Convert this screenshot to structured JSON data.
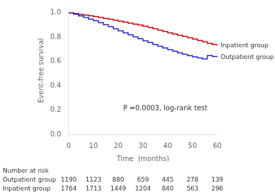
{
  "chart_data": {
    "type": "step",
    "xlabel": "Time  (months)",
    "ylabel": "Event-free survival",
    "xlim": [
      0,
      60
    ],
    "ylim": [
      0,
      1.05
    ],
    "xticks": [
      0,
      10,
      20,
      30,
      40,
      50,
      60
    ],
    "yticks": [
      {
        "value": 0,
        "label": "0.0"
      },
      0.2,
      0.4,
      0.6,
      0.8,
      {
        "value": 1.0,
        "label": "1.0"
      }
    ],
    "grid": false,
    "annotations": [
      {
        "text": "P =0.0003, log-rank test",
        "x": 22,
        "y": 0.21
      }
    ],
    "at_risk_title": "Number at risk",
    "at_risk_x": [
      0,
      10,
      20,
      30,
      40,
      50,
      60
    ],
    "series": [
      {
        "name": "Outpatient group",
        "color": "#2222cc",
        "x": [
          0,
          2,
          4,
          6,
          8,
          10,
          12,
          14,
          16,
          18,
          20,
          22,
          24,
          26,
          28,
          30,
          32,
          34,
          36,
          38,
          40,
          42,
          44,
          46,
          48,
          50,
          52,
          54,
          56,
          58,
          60
        ],
        "values": [
          1.0,
          0.99,
          0.975,
          0.962,
          0.949,
          0.936,
          0.92,
          0.903,
          0.887,
          0.87,
          0.853,
          0.836,
          0.82,
          0.803,
          0.787,
          0.771,
          0.756,
          0.74,
          0.725,
          0.711,
          0.697,
          0.684,
          0.671,
          0.659,
          0.648,
          0.638,
          0.629,
          0.621,
          0.649,
          0.641,
          0.633
        ],
        "at_risk": [
          1190,
          1123,
          880,
          659,
          445,
          278,
          139
        ]
      },
      {
        "name": "Inpatient group",
        "color": "#cc0000",
        "x": [
          0,
          2,
          4,
          6,
          8,
          10,
          12,
          14,
          16,
          18,
          20,
          22,
          24,
          26,
          28,
          30,
          32,
          34,
          36,
          38,
          40,
          42,
          44,
          46,
          48,
          50,
          52,
          54,
          56,
          58,
          60
        ],
        "values": [
          1.0,
          0.995,
          0.988,
          0.982,
          0.976,
          0.97,
          0.963,
          0.956,
          0.948,
          0.94,
          0.932,
          0.924,
          0.916,
          0.908,
          0.9,
          0.891,
          0.88,
          0.869,
          0.858,
          0.847,
          0.836,
          0.826,
          0.816,
          0.806,
          0.796,
          0.785,
          0.773,
          0.762,
          0.75,
          0.739,
          0.728
        ],
        "at_risk": [
          1764,
          1713,
          1449,
          1204,
          840,
          563,
          296
        ]
      }
    ]
  }
}
